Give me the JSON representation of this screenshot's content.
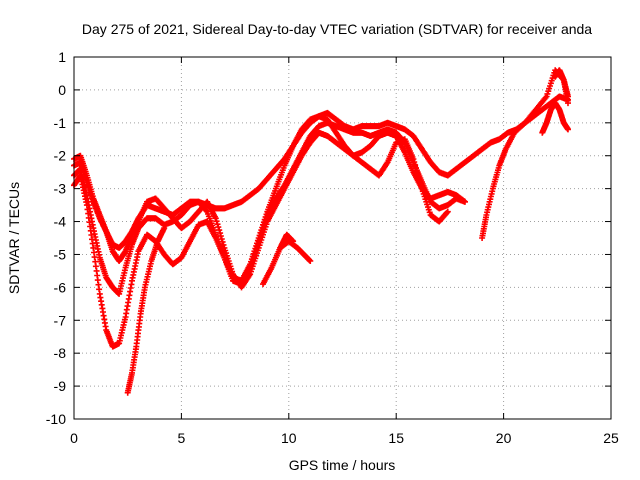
{
  "chart_data": {
    "type": "scatter",
    "title": "Day 275 of 2021, Sidereal Day-to-day VTEC variation (SDTVAR) for receiver anda",
    "xlabel": "GPS time / hours",
    "ylabel": "SDTVAR / TECUs",
    "xlim": [
      0,
      25
    ],
    "ylim": [
      -10,
      1
    ],
    "xticks": [
      0,
      5,
      10,
      15,
      20,
      25
    ],
    "yticks": [
      1,
      0,
      -1,
      -2,
      -3,
      -4,
      -5,
      -6,
      -7,
      -8,
      -9,
      -10
    ],
    "grid": true,
    "marker": "plus",
    "color": "#ff0000",
    "series": [
      {
        "x": [
          0.0,
          0.3,
          0.6,
          0.9,
          1.2,
          1.5,
          1.8,
          2.1,
          2.4,
          2.7,
          3.0,
          3.4,
          3.8,
          4.2,
          4.6,
          5.0,
          5.4,
          5.8,
          6.2,
          6.6,
          7.0,
          7.4,
          7.8,
          8.2,
          8.6,
          9.0,
          9.4,
          9.8,
          10.2,
          10.6,
          11.0,
          11.4,
          11.8,
          12.2,
          12.6,
          13.0,
          13.4,
          13.8,
          14.2,
          14.6,
          15.0,
          15.4,
          15.8,
          16.2,
          16.6,
          17.0,
          17.4,
          17.8,
          18.2,
          18.6,
          19.0,
          19.4,
          19.8,
          20.2,
          20.6,
          21.0,
          21.4,
          21.8,
          22.2,
          22.6,
          23.0
        ],
        "y": [
          -2.3,
          -2.2,
          -2.8,
          -3.4,
          -3.9,
          -4.3,
          -4.7,
          -4.8,
          -4.6,
          -4.3,
          -3.9,
          -3.5,
          -3.6,
          -3.7,
          -3.8,
          -3.6,
          -3.4,
          -3.4,
          -3.5,
          -3.6,
          -3.6,
          -3.5,
          -3.4,
          -3.2,
          -3.0,
          -2.7,
          -2.4,
          -2.1,
          -1.7,
          -1.3,
          -1.0,
          -0.8,
          -0.7,
          -0.9,
          -1.1,
          -1.2,
          -1.1,
          -1.1,
          -1.1,
          -1.0,
          -1.1,
          -1.2,
          -1.4,
          -1.8,
          -2.2,
          -2.5,
          -2.6,
          -2.4,
          -2.2,
          -2.0,
          -1.8,
          -1.6,
          -1.5,
          -1.3,
          -1.2,
          -1.0,
          -0.8,
          -0.6,
          -0.4,
          -0.2,
          -0.3
        ]
      },
      {
        "x": [
          0.0,
          0.3,
          0.6,
          0.9,
          1.2,
          1.5,
          1.8,
          2.1,
          2.4,
          2.7,
          3.0,
          3.4,
          3.8,
          4.2,
          4.6,
          5.0,
          5.4,
          5.8,
          6.2,
          6.6,
          7.0,
          7.4,
          7.8,
          8.2,
          8.6,
          9.0,
          9.4,
          9.8,
          10.2,
          10.6,
          11.0,
          11.4,
          11.8,
          12.2,
          12.6,
          13.0,
          13.4,
          13.8,
          14.2,
          14.6,
          15.0,
          15.4,
          15.8,
          16.2,
          16.6,
          17.0,
          17.4,
          17.8,
          18.2
        ],
        "y": [
          -2.6,
          -2.4,
          -3.2,
          -4.2,
          -5.1,
          -5.7,
          -6.0,
          -6.2,
          -5.4,
          -4.7,
          -4.2,
          -3.9,
          -3.9,
          -4.1,
          -4.0,
          -3.8,
          -3.5,
          -3.4,
          -3.7,
          -4.4,
          -5.1,
          -5.8,
          -5.9,
          -5.4,
          -4.6,
          -3.8,
          -3.3,
          -2.9,
          -2.4,
          -1.9,
          -1.4,
          -1.1,
          -1.0,
          -1.1,
          -1.2,
          -1.3,
          -1.3,
          -1.4,
          -1.3,
          -1.2,
          -1.3,
          -1.6,
          -2.2,
          -2.8,
          -3.4,
          -3.6,
          -3.5,
          -3.3,
          -3.4
        ]
      },
      {
        "x": [
          0.0,
          0.3,
          0.6,
          0.9,
          1.2,
          1.5,
          1.8,
          2.1,
          2.4,
          2.7,
          3.0,
          3.4,
          3.8,
          4.2,
          4.6,
          5.0,
          5.4,
          5.8,
          6.2,
          6.6,
          7.0,
          7.4,
          7.8,
          8.2,
          8.6,
          9.0,
          9.4,
          9.8,
          10.2,
          10.6,
          11.0,
          11.4,
          11.8,
          12.2,
          12.6,
          13.0,
          13.4,
          13.8,
          14.2,
          14.6,
          15.0,
          15.4,
          15.8,
          16.2,
          16.6,
          17.0,
          17.4
        ],
        "y": [
          -2.9,
          -2.6,
          -3.5,
          -4.8,
          -6.2,
          -7.3,
          -7.8,
          -7.7,
          -6.9,
          -5.8,
          -4.9,
          -4.4,
          -4.6,
          -5.0,
          -5.3,
          -5.1,
          -4.6,
          -4.1,
          -4.0,
          -4.5,
          -5.1,
          -5.7,
          -5.8,
          -5.3,
          -4.5,
          -3.7,
          -3.0,
          -2.3,
          -1.7,
          -1.2,
          -0.9,
          -0.8,
          -0.9,
          -1.3,
          -1.7,
          -2.0,
          -2.2,
          -2.4,
          -2.6,
          -2.2,
          -1.6,
          -1.5,
          -2.1,
          -3.0,
          -3.8,
          -4.0,
          -3.7
        ]
      },
      {
        "x": [
          0.0,
          0.3,
          0.6,
          0.9,
          1.2,
          1.5,
          1.8,
          2.1,
          2.4,
          2.7,
          3.0,
          3.4,
          3.8,
          4.2,
          4.6,
          5.0,
          5.4,
          5.8,
          6.2,
          6.6,
          7.0,
          7.4,
          7.8,
          8.2,
          8.6,
          9.0,
          9.4,
          9.8,
          10.2,
          10.6,
          11.0,
          11.4,
          11.8,
          12.2,
          12.6,
          13.0,
          13.4,
          13.8,
          14.2,
          14.6,
          15.0,
          15.4,
          15.8,
          16.2,
          16.6,
          17.0,
          17.4,
          17.8,
          18.2
        ],
        "y": [
          -2.1,
          -2.0,
          -2.6,
          -3.3,
          -3.8,
          -4.3,
          -4.9,
          -5.2,
          -4.9,
          -4.4,
          -4.0,
          -3.4,
          -3.3,
          -3.6,
          -3.9,
          -4.2,
          -4.0,
          -3.7,
          -3.4,
          -3.9,
          -4.8,
          -5.6,
          -6.0,
          -5.6,
          -4.8,
          -4.0,
          -3.5,
          -3.0,
          -2.5,
          -2.0,
          -1.6,
          -1.3,
          -1.4,
          -1.6,
          -1.8,
          -2.0,
          -1.9,
          -1.7,
          -1.4,
          -1.3,
          -1.4,
          -1.9,
          -2.5,
          -3.0,
          -3.3,
          -3.2,
          -3.1,
          -3.2,
          -3.4
        ]
      },
      {
        "x": [
          2.5,
          2.7,
          2.9,
          3.1,
          3.3,
          3.6,
          3.9,
          4.2
        ],
        "y": [
          -9.2,
          -8.6,
          -7.8,
          -6.8,
          -6.0,
          -5.2,
          -4.6,
          -4.2
        ]
      },
      {
        "x": [
          8.8,
          9.2,
          9.6,
          10.0,
          10.4,
          10.7,
          11.0
        ],
        "y": [
          -5.9,
          -5.4,
          -4.8,
          -4.6,
          -4.8,
          -5.0,
          -5.2
        ]
      },
      {
        "x": [
          9.6,
          9.9,
          10.2
        ],
        "y": [
          -4.8,
          -4.4,
          -4.6
        ]
      },
      {
        "x": [
          19.0,
          19.2,
          19.5,
          19.8,
          20.1,
          20.5,
          21.0,
          21.5,
          22.0,
          22.4,
          22.8,
          23.0
        ],
        "y": [
          -4.5,
          -3.8,
          -3.0,
          -2.3,
          -1.8,
          -1.3,
          -1.0,
          -0.6,
          -0.2,
          0.6,
          0.3,
          -0.4
        ]
      },
      {
        "x": [
          21.8,
          22.0,
          22.2,
          22.4,
          22.6,
          22.8,
          23.0
        ],
        "y": [
          -1.3,
          -1.0,
          -0.6,
          -0.4,
          -0.6,
          -1.0,
          -1.2
        ]
      },
      {
        "x": [
          22.4,
          22.6,
          22.8,
          23.0
        ],
        "y": [
          0.4,
          0.6,
          0.3,
          -0.2
        ]
      }
    ]
  }
}
